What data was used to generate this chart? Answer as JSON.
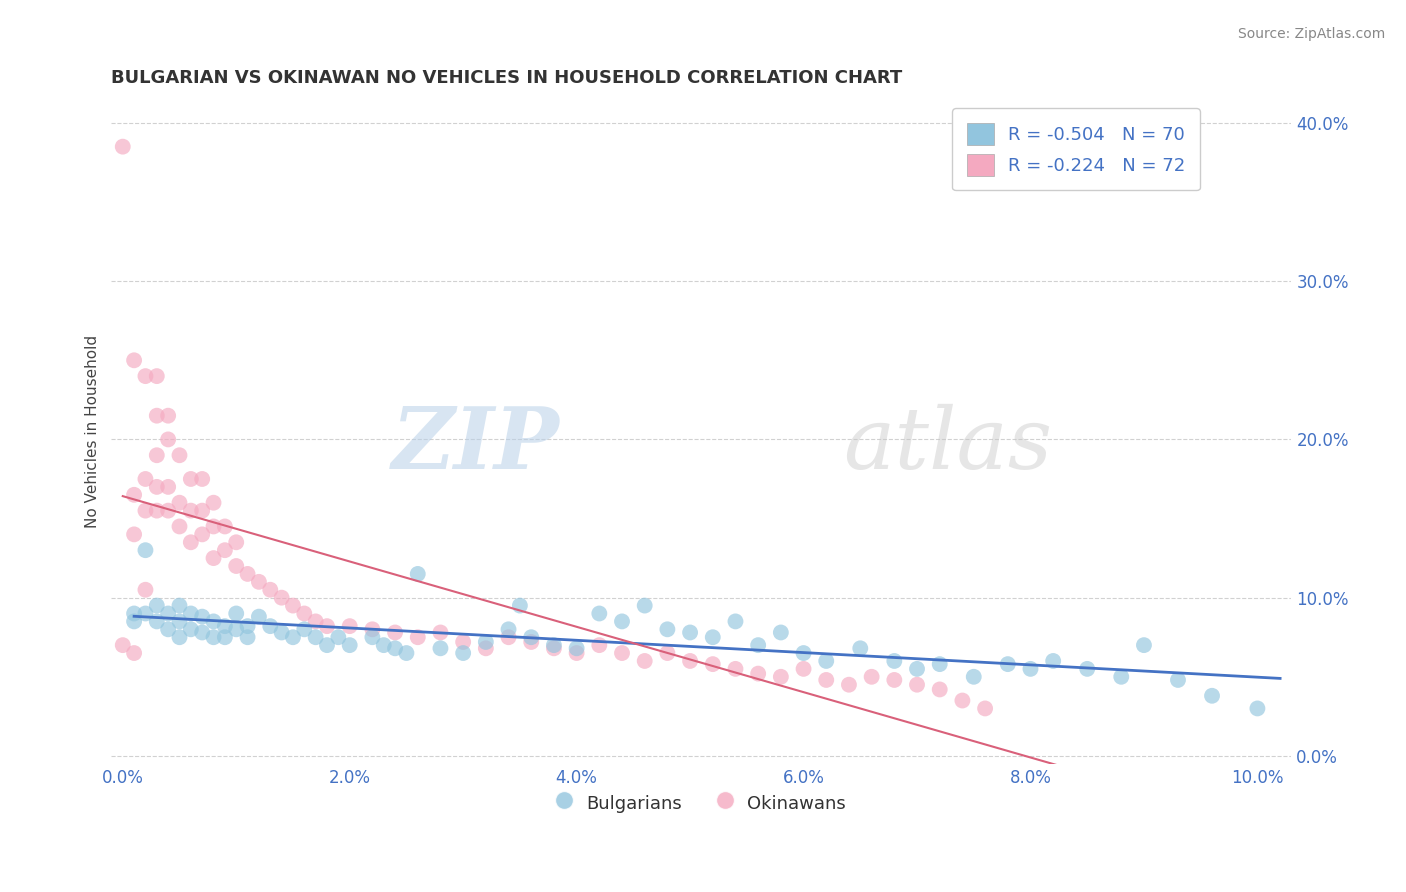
{
  "title": "BULGARIAN VS OKINAWAN NO VEHICLES IN HOUSEHOLD CORRELATION CHART",
  "source": "Source: ZipAtlas.com",
  "ylabel_label": "No Vehicles in Household",
  "legend_label1": "Bulgarians",
  "legend_label2": "Okinawans",
  "R_blue": -0.504,
  "N_blue": 70,
  "R_pink": -0.224,
  "N_pink": 72,
  "xlim_min": -0.001,
  "xlim_max": 0.103,
  "ylim_min": -0.005,
  "ylim_max": 0.415,
  "xticks": [
    0.0,
    0.02,
    0.04,
    0.06,
    0.08,
    0.1
  ],
  "yticks": [
    0.0,
    0.1,
    0.2,
    0.3,
    0.4
  ],
  "xtick_labels": [
    "0.0%",
    "2.0%",
    "4.0%",
    "6.0%",
    "8.0%",
    "10.0%"
  ],
  "ytick_labels": [
    "0.0%",
    "10.0%",
    "20.0%",
    "30.0%",
    "40.0%"
  ],
  "color_blue": "#92c5de",
  "color_pink": "#f4a9c0",
  "regression_color_blue": "#4472c4",
  "regression_color_pink": "#d9607a",
  "background_color": "#ffffff",
  "watermark": "ZIPatlas",
  "blue_x": [
    0.001,
    0.001,
    0.002,
    0.002,
    0.003,
    0.003,
    0.004,
    0.004,
    0.005,
    0.005,
    0.005,
    0.006,
    0.006,
    0.007,
    0.007,
    0.008,
    0.008,
    0.009,
    0.009,
    0.01,
    0.01,
    0.011,
    0.011,
    0.012,
    0.013,
    0.014,
    0.015,
    0.016,
    0.017,
    0.018,
    0.019,
    0.02,
    0.022,
    0.023,
    0.024,
    0.025,
    0.026,
    0.028,
    0.03,
    0.032,
    0.034,
    0.035,
    0.036,
    0.038,
    0.04,
    0.042,
    0.044,
    0.046,
    0.048,
    0.05,
    0.052,
    0.054,
    0.056,
    0.058,
    0.06,
    0.062,
    0.065,
    0.068,
    0.07,
    0.072,
    0.075,
    0.078,
    0.08,
    0.082,
    0.085,
    0.088,
    0.09,
    0.093,
    0.096,
    0.1
  ],
  "blue_y": [
    0.09,
    0.085,
    0.13,
    0.09,
    0.085,
    0.095,
    0.08,
    0.09,
    0.075,
    0.085,
    0.095,
    0.08,
    0.09,
    0.078,
    0.088,
    0.075,
    0.085,
    0.075,
    0.082,
    0.08,
    0.09,
    0.082,
    0.075,
    0.088,
    0.082,
    0.078,
    0.075,
    0.08,
    0.075,
    0.07,
    0.075,
    0.07,
    0.075,
    0.07,
    0.068,
    0.065,
    0.115,
    0.068,
    0.065,
    0.072,
    0.08,
    0.095,
    0.075,
    0.07,
    0.068,
    0.09,
    0.085,
    0.095,
    0.08,
    0.078,
    0.075,
    0.085,
    0.07,
    0.078,
    0.065,
    0.06,
    0.068,
    0.06,
    0.055,
    0.058,
    0.05,
    0.058,
    0.055,
    0.06,
    0.055,
    0.05,
    0.07,
    0.048,
    0.038,
    0.03
  ],
  "pink_x": [
    0.0,
    0.0,
    0.001,
    0.001,
    0.001,
    0.001,
    0.002,
    0.002,
    0.002,
    0.002,
    0.003,
    0.003,
    0.003,
    0.003,
    0.003,
    0.004,
    0.004,
    0.004,
    0.004,
    0.005,
    0.005,
    0.005,
    0.006,
    0.006,
    0.006,
    0.007,
    0.007,
    0.007,
    0.008,
    0.008,
    0.008,
    0.009,
    0.009,
    0.01,
    0.01,
    0.011,
    0.012,
    0.013,
    0.014,
    0.015,
    0.016,
    0.017,
    0.018,
    0.02,
    0.022,
    0.024,
    0.026,
    0.028,
    0.03,
    0.032,
    0.034,
    0.036,
    0.038,
    0.04,
    0.042,
    0.044,
    0.046,
    0.048,
    0.05,
    0.052,
    0.054,
    0.056,
    0.058,
    0.06,
    0.062,
    0.064,
    0.066,
    0.068,
    0.07,
    0.072,
    0.074,
    0.076
  ],
  "pink_y": [
    0.385,
    0.07,
    0.25,
    0.14,
    0.065,
    0.165,
    0.155,
    0.24,
    0.175,
    0.105,
    0.17,
    0.155,
    0.19,
    0.215,
    0.24,
    0.155,
    0.17,
    0.2,
    0.215,
    0.145,
    0.16,
    0.19,
    0.135,
    0.155,
    0.175,
    0.14,
    0.155,
    0.175,
    0.125,
    0.145,
    0.16,
    0.13,
    0.145,
    0.12,
    0.135,
    0.115,
    0.11,
    0.105,
    0.1,
    0.095,
    0.09,
    0.085,
    0.082,
    0.082,
    0.08,
    0.078,
    0.075,
    0.078,
    0.072,
    0.068,
    0.075,
    0.072,
    0.068,
    0.065,
    0.07,
    0.065,
    0.06,
    0.065,
    0.06,
    0.058,
    0.055,
    0.052,
    0.05,
    0.055,
    0.048,
    0.045,
    0.05,
    0.048,
    0.045,
    0.042,
    0.035,
    0.03
  ]
}
